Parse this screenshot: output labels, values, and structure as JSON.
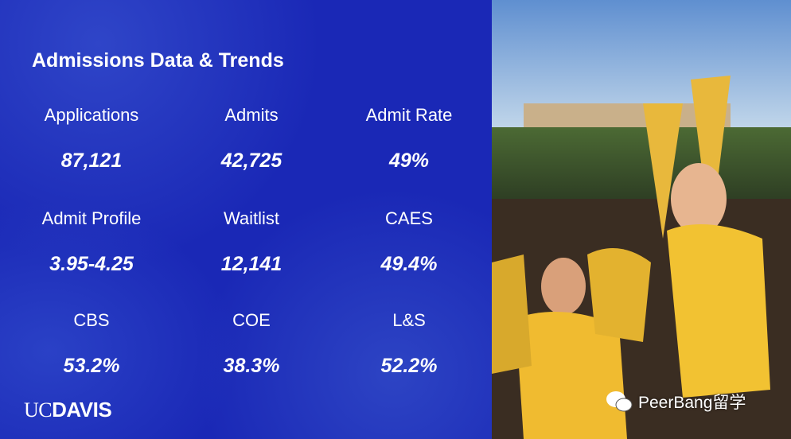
{
  "slide": {
    "title": "Admissions Data & Trends",
    "stats": [
      {
        "label": "Applications",
        "value": "87,121"
      },
      {
        "label": "Admits",
        "value": "42,725"
      },
      {
        "label": "Admit Rate",
        "value": "49%"
      },
      {
        "label": "Admit Profile",
        "value": "3.95-4.25"
      },
      {
        "label": "Waitlist",
        "value": "12,141"
      },
      {
        "label": "CAES",
        "value": "49.4%"
      },
      {
        "label": "CBS",
        "value": "53.2%"
      },
      {
        "label": "COE",
        "value": "38.3%"
      },
      {
        "label": "L&S",
        "value": "52.2%"
      }
    ],
    "logo": {
      "uc": "UC",
      "davis": "DAVIS"
    },
    "watermark": "PeerBang留学"
  }
}
